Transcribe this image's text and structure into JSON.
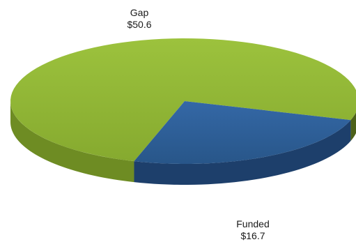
{
  "chart_data": {
    "type": "pie",
    "style": "3d",
    "slices": [
      {
        "label": "Gap",
        "value": 50.6,
        "display": "$50.6",
        "color": "#8cb033",
        "side_color": "#6e8c23"
      },
      {
        "label": "Funded",
        "value": 16.7,
        "display": "$16.7",
        "color": "#2b5c96",
        "side_color": "#1d3f6b"
      }
    ],
    "title": "",
    "legend": "none"
  }
}
